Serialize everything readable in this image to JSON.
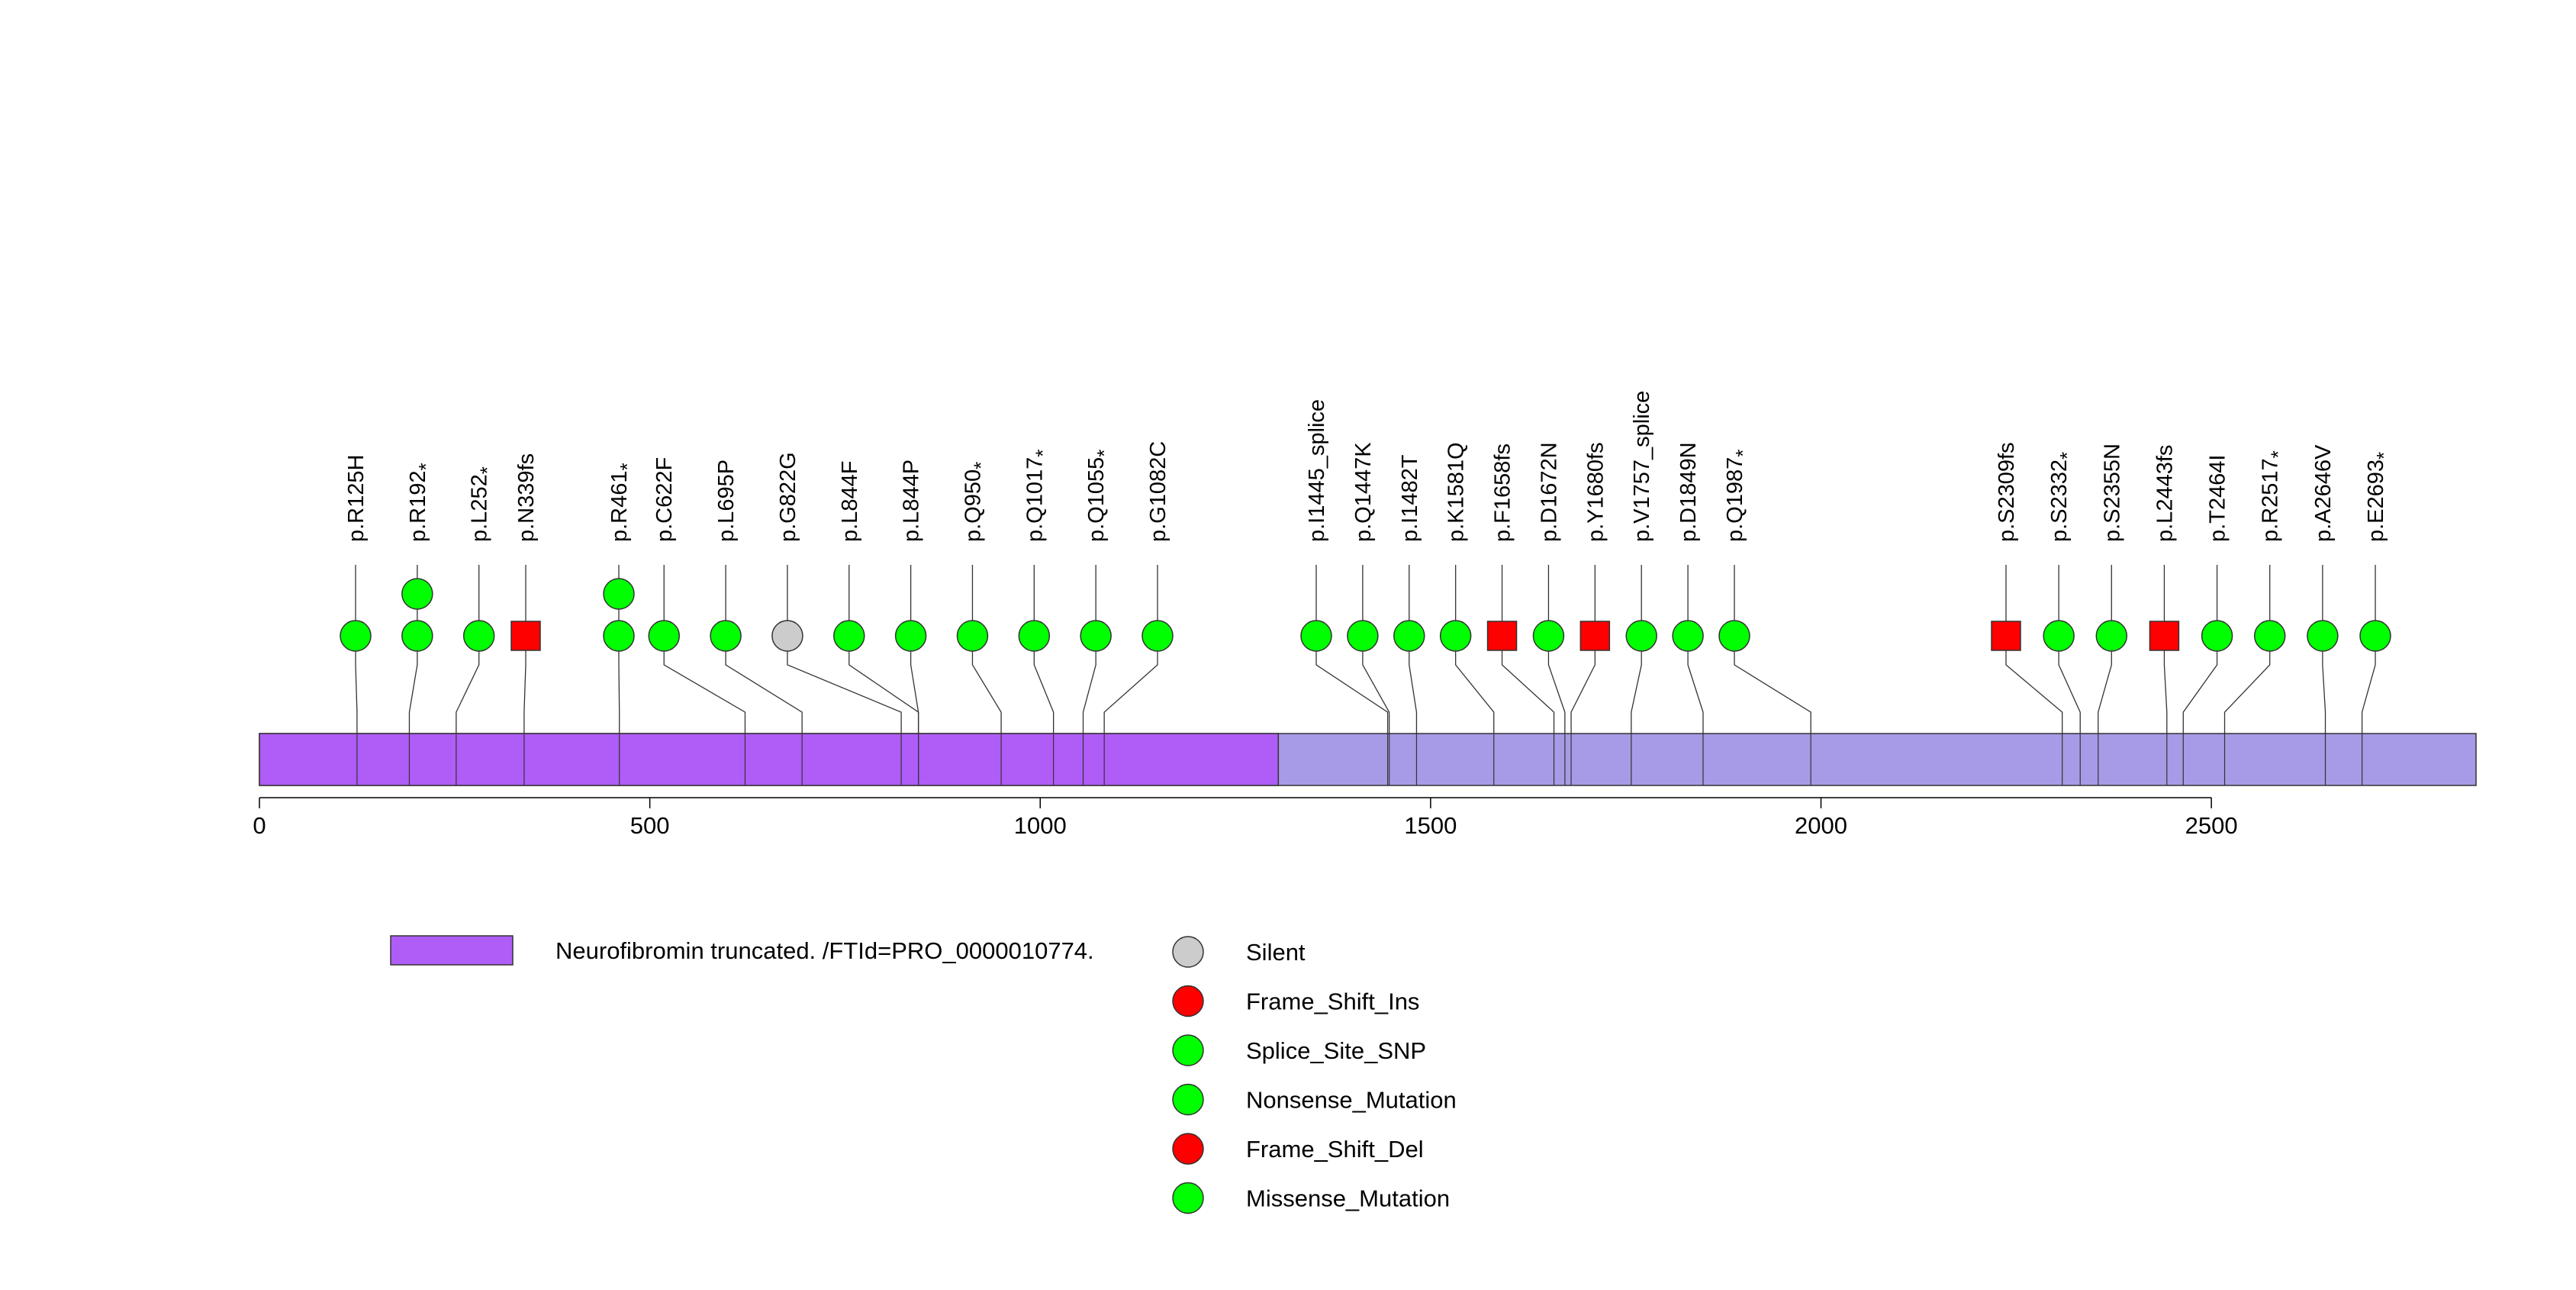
{
  "chart_data": {
    "type": "lollipop",
    "protein_length": 2839,
    "axis": {
      "ticks": [
        0,
        500,
        1000,
        1500,
        2000,
        2500
      ],
      "range": [
        0,
        2839
      ]
    },
    "domain": {
      "name": "Neurofibromin truncated. /FTId=PRO_0000010774.",
      "start": 1,
      "end": 1305,
      "color": "#b05cf7"
    },
    "protein_color": "#a79ae6",
    "legend": [
      {
        "label": "Neurofibromin truncated. /FTId=PRO_0000010774.",
        "shape": "rect",
        "color": "#b05cf7"
      },
      {
        "label": "Silent",
        "shape": "circle",
        "color": "#cccccc"
      },
      {
        "label": "Frame_Shift_Ins",
        "shape": "circle",
        "color": "#ff0000"
      },
      {
        "label": "Splice_Site_SNP",
        "shape": "circle",
        "color": "#00ff00"
      },
      {
        "label": "Nonsense_Mutation",
        "shape": "circle",
        "color": "#00ff00"
      },
      {
        "label": "Frame_Shift_Del",
        "shape": "circle",
        "color": "#ff0000"
      },
      {
        "label": "Missense_Mutation",
        "shape": "circle",
        "color": "#00ff00"
      }
    ],
    "mutations": [
      {
        "label": "p.R125H",
        "pos": 125,
        "count": 1,
        "shape": "circle",
        "color": "#00ff00"
      },
      {
        "label": "p.R192",
        "star": true,
        "pos": 192,
        "count": 2,
        "shape": "circle",
        "color": "#00ff00"
      },
      {
        "label": "p.L252",
        "star": true,
        "pos": 252,
        "count": 1,
        "shape": "circle",
        "color": "#00ff00"
      },
      {
        "label": "p.N339fs",
        "pos": 339,
        "count": 1,
        "shape": "square",
        "color": "#ff0000"
      },
      {
        "label": "p.R461",
        "star": true,
        "pos": 461,
        "count": 2,
        "shape": "circle",
        "color": "#00ff00"
      },
      {
        "label": "p.C622F",
        "pos": 622,
        "count": 1,
        "shape": "circle",
        "color": "#00ff00"
      },
      {
        "label": "p.L695P",
        "pos": 695,
        "count": 1,
        "shape": "circle",
        "color": "#00ff00"
      },
      {
        "label": "p.G822G",
        "pos": 822,
        "count": 1,
        "shape": "circle",
        "color": "#cccccc"
      },
      {
        "label": "p.L844F",
        "pos": 844,
        "count": 1,
        "shape": "circle",
        "color": "#00ff00"
      },
      {
        "label": "p.L844P",
        "pos": 844,
        "count": 1,
        "shape": "circle",
        "color": "#00ff00"
      },
      {
        "label": "p.Q950",
        "star": true,
        "pos": 950,
        "count": 1,
        "shape": "circle",
        "color": "#00ff00"
      },
      {
        "label": "p.Q1017",
        "star": true,
        "pos": 1017,
        "count": 1,
        "shape": "circle",
        "color": "#00ff00"
      },
      {
        "label": "p.Q1055",
        "star": true,
        "pos": 1055,
        "count": 1,
        "shape": "circle",
        "color": "#00ff00"
      },
      {
        "label": "p.G1082C",
        "pos": 1082,
        "count": 1,
        "shape": "circle",
        "color": "#00ff00"
      },
      {
        "label": "p.I1445_splice",
        "pos": 1445,
        "count": 1,
        "shape": "circle",
        "color": "#00ff00"
      },
      {
        "label": "p.Q1447K",
        "pos": 1447,
        "count": 1,
        "shape": "circle",
        "color": "#00ff00"
      },
      {
        "label": "p.I1482T",
        "pos": 1482,
        "count": 1,
        "shape": "circle",
        "color": "#00ff00"
      },
      {
        "label": "p.K1581Q",
        "pos": 1581,
        "count": 1,
        "shape": "circle",
        "color": "#00ff00"
      },
      {
        "label": "p.F1658fs",
        "pos": 1658,
        "count": 1,
        "shape": "square",
        "color": "#ff0000"
      },
      {
        "label": "p.D1672N",
        "pos": 1672,
        "count": 1,
        "shape": "circle",
        "color": "#00ff00"
      },
      {
        "label": "p.Y1680fs",
        "pos": 1680,
        "count": 1,
        "shape": "square",
        "color": "#ff0000"
      },
      {
        "label": "p.V1757_splice",
        "pos": 1757,
        "count": 1,
        "shape": "circle",
        "color": "#00ff00"
      },
      {
        "label": "p.D1849N",
        "pos": 1849,
        "count": 1,
        "shape": "circle",
        "color": "#00ff00"
      },
      {
        "label": "p.Q1987",
        "star": true,
        "pos": 1987,
        "count": 1,
        "shape": "circle",
        "color": "#00ff00"
      },
      {
        "label": "p.S2309fs",
        "pos": 2309,
        "count": 1,
        "shape": "square",
        "color": "#ff0000"
      },
      {
        "label": "p.S2332",
        "star": true,
        "pos": 2332,
        "count": 1,
        "shape": "circle",
        "color": "#00ff00"
      },
      {
        "label": "p.S2355N",
        "pos": 2355,
        "count": 1,
        "shape": "circle",
        "color": "#00ff00"
      },
      {
        "label": "p.L2443fs",
        "pos": 2443,
        "count": 1,
        "shape": "square",
        "color": "#ff0000"
      },
      {
        "label": "p.T2464I",
        "pos": 2464,
        "count": 1,
        "shape": "circle",
        "color": "#00ff00"
      },
      {
        "label": "p.R2517",
        "star": true,
        "pos": 2517,
        "count": 1,
        "shape": "circle",
        "color": "#00ff00"
      },
      {
        "label": "p.A2646V",
        "pos": 2646,
        "count": 1,
        "shape": "circle",
        "color": "#00ff00"
      },
      {
        "label": "p.E2693",
        "star": true,
        "pos": 2693,
        "count": 1,
        "shape": "circle",
        "color": "#00ff00"
      }
    ]
  }
}
